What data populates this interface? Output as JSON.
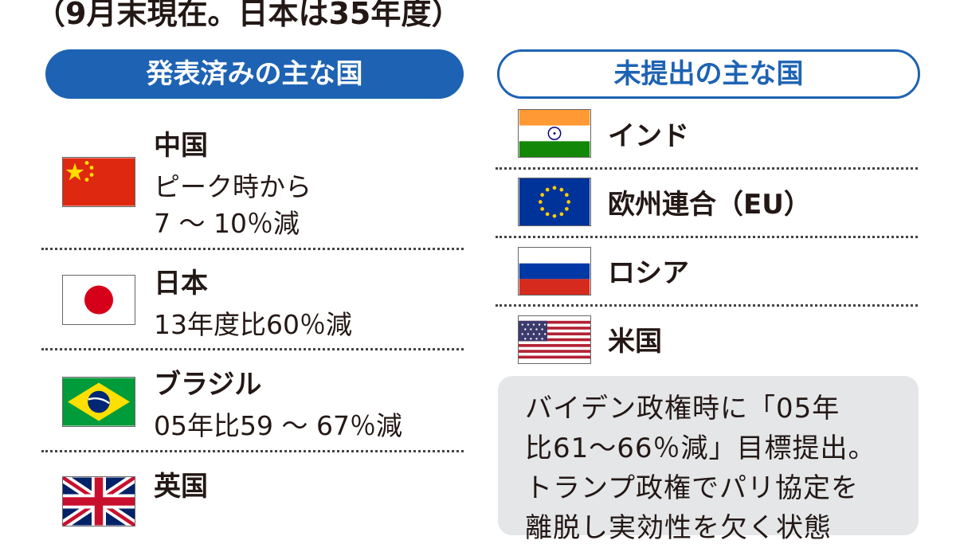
{
  "subtitle": "（9月末現在。日本は35年度）",
  "left_header": "発表済みの主な国",
  "right_header": "未提出の主な国",
  "announced": [
    {
      "name": "中国",
      "detail_lines": [
        "ピーク時から",
        "7 ～ 10％減"
      ],
      "flag": "china-flag-icon"
    },
    {
      "name": "日本",
      "detail_lines": [
        "13年度比60％減"
      ],
      "flag": "japan-flag-icon"
    },
    {
      "name": "ブラジル",
      "detail_lines": [
        "05年比59 ～ 67％減"
      ],
      "flag": "brazil-flag-icon"
    },
    {
      "name": "英国",
      "detail_lines": [],
      "flag": "uk-flag-icon"
    }
  ],
  "not_submitted": [
    {
      "name": "インド",
      "flag": "india-flag-icon"
    },
    {
      "name": "欧州連合（EU）",
      "flag": "eu-flag-icon"
    },
    {
      "name": "ロシア",
      "flag": "russia-flag-icon"
    },
    {
      "name": "米国",
      "flag": "usa-flag-icon"
    }
  ],
  "us_note_lines": [
    "バイデン政権時に「05年",
    "比61～66％減」目標提出。",
    "トランプ政権でパリ協定を",
    "離脱し実効性を欠く状態"
  ],
  "colors": {
    "accent_blue": "#1e63b3",
    "note_bg": "#e4e6e8",
    "text": "#231815"
  }
}
